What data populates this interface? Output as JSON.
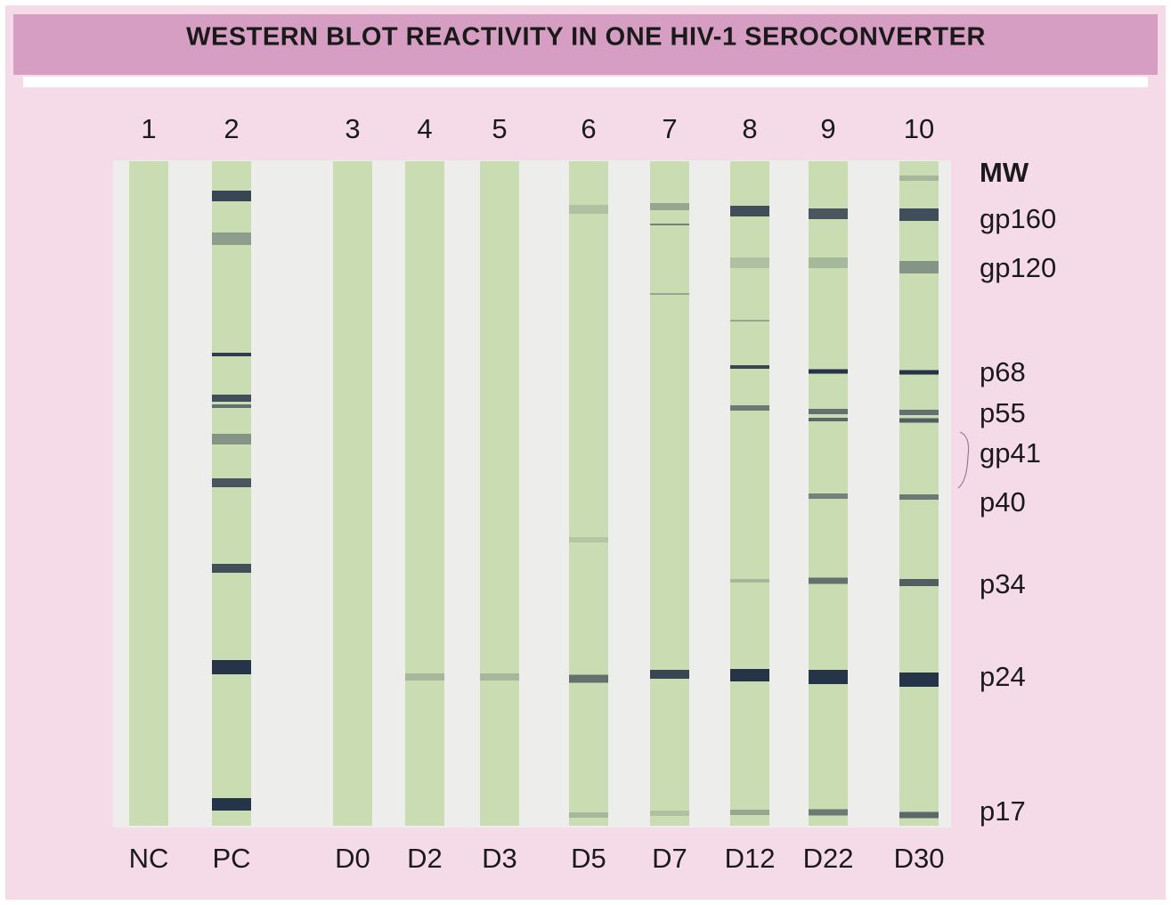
{
  "title": "WESTERN BLOT REACTIVITY IN ONE HIV-1 SEROCONVERTER",
  "lanes": [
    {
      "number": "1",
      "label": "NC"
    },
    {
      "number": "2",
      "label": "PC"
    },
    {
      "number": "3",
      "label": "D0"
    },
    {
      "number": "4",
      "label": "D2"
    },
    {
      "number": "5",
      "label": "D3"
    },
    {
      "number": "6",
      "label": "D5"
    },
    {
      "number": "7",
      "label": "D7"
    },
    {
      "number": "8",
      "label": "D12"
    },
    {
      "number": "9",
      "label": "D22"
    },
    {
      "number": "10",
      "label": "D30"
    }
  ],
  "mw_header": "MW",
  "mw_markers": [
    "gp160",
    "gp120",
    "p68",
    "p55",
    "gp41",
    "p40",
    "p34",
    "p24",
    "p17"
  ]
}
